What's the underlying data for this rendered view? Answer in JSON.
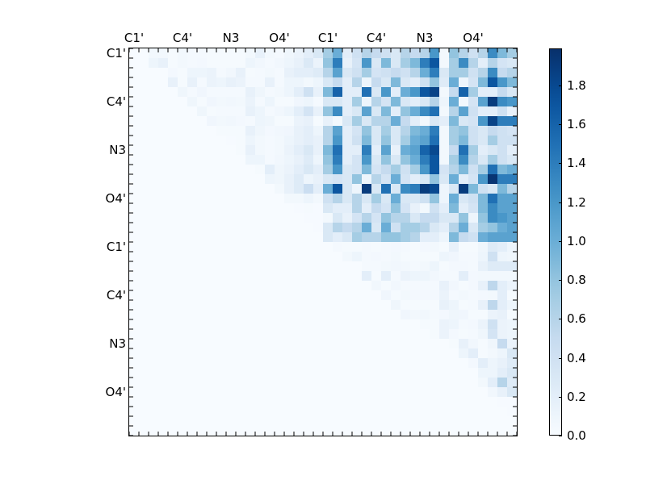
{
  "chart_data": {
    "type": "heatmap",
    "title": "",
    "xlabel": "",
    "ylabel": "",
    "rows": 40,
    "cols": 40,
    "x_tick_labels": [
      {
        "index": 0,
        "label": "C1'"
      },
      {
        "index": 5,
        "label": "C4'"
      },
      {
        "index": 10,
        "label": "N3"
      },
      {
        "index": 15,
        "label": "O4'"
      },
      {
        "index": 20,
        "label": "C1'"
      },
      {
        "index": 25,
        "label": "C4'"
      },
      {
        "index": 30,
        "label": "N3"
      },
      {
        "index": 35,
        "label": "O4'"
      }
    ],
    "y_tick_labels": [
      {
        "index": 0,
        "label": "C1'"
      },
      {
        "index": 5,
        "label": "C4'"
      },
      {
        "index": 10,
        "label": "N3"
      },
      {
        "index": 15,
        "label": "O4'"
      },
      {
        "index": 20,
        "label": "C1'"
      },
      {
        "index": 25,
        "label": "C4'"
      },
      {
        "index": 30,
        "label": "N3"
      },
      {
        "index": 35,
        "label": "O4'"
      }
    ],
    "colormap": "Blues",
    "vmin": 0.0,
    "vmax": 1.99,
    "colorbar": {
      "ticks": [
        "0.0",
        "0.2",
        "0.4",
        "0.6",
        "0.8",
        "1.0",
        "1.2",
        "1.4",
        "1.6",
        "1.8"
      ]
    },
    "upper_left_block_note": "rows 0-19, cols 0-19: faint values 0-0.4, upper triangular",
    "upper_left": [
      [
        0,
        0,
        0.05,
        0.05,
        0.02,
        0.05,
        0.03,
        0.03,
        0.02,
        0.02,
        0.02,
        0.02,
        0.05,
        0.15,
        0.05,
        0.03,
        0.08,
        0.12,
        0.2,
        0.3
      ],
      [
        0,
        0,
        0.1,
        0.15,
        0.02,
        0.05,
        0.03,
        0.04,
        0.02,
        0.02,
        0.02,
        0.02,
        0.1,
        0.06,
        0.03,
        0.06,
        0.1,
        0.15,
        0.28,
        0.12
      ],
      [
        0,
        0,
        0,
        0,
        0.04,
        0.02,
        0.1,
        0.1,
        0.12,
        0.03,
        0.06,
        0.15,
        0.02,
        0.03,
        0.05,
        0.03,
        0.15,
        0.2,
        0.2,
        0.25
      ],
      [
        0,
        0,
        0,
        0,
        0.15,
        0.02,
        0.15,
        0.03,
        0.12,
        0.1,
        0.15,
        0.12,
        0.03,
        0.03,
        0.15,
        0.03,
        0.1,
        0.1,
        0.05,
        0.1
      ],
      [
        0,
        0,
        0,
        0,
        0,
        0.08,
        0.03,
        0.07,
        0.03,
        0.03,
        0.03,
        0.03,
        0.15,
        0.08,
        0.03,
        0.05,
        0.1,
        0.2,
        0.4,
        0.15
      ],
      [
        0,
        0,
        0,
        0,
        0,
        0,
        0.08,
        0.02,
        0.07,
        0.05,
        0.06,
        0.05,
        0.12,
        0.03,
        0.1,
        0.02,
        0.02,
        0.07,
        0.1,
        0.03
      ],
      [
        0,
        0,
        0,
        0,
        0,
        0,
        0,
        0.08,
        0.02,
        0.03,
        0.03,
        0.03,
        0.15,
        0.1,
        0.03,
        0.06,
        0.1,
        0.2,
        0.35,
        0.15
      ],
      [
        0,
        0,
        0,
        0,
        0,
        0,
        0,
        0,
        0.07,
        0.05,
        0.06,
        0.04,
        0.03,
        0.1,
        0.08,
        0.02,
        0.02,
        0.12,
        0.15,
        0.02
      ],
      [
        0,
        0,
        0,
        0,
        0,
        0,
        0,
        0,
        0,
        0.02,
        0.02,
        0.02,
        0.15,
        0.08,
        0.04,
        0.06,
        0.07,
        0.15,
        0.2,
        0.1
      ],
      [
        0,
        0,
        0,
        0,
        0,
        0,
        0,
        0,
        0,
        0,
        0.01,
        0.02,
        0.1,
        0.05,
        0.03,
        0.05,
        0.1,
        0.15,
        0.2,
        0.15
      ],
      [
        0,
        0,
        0,
        0,
        0,
        0,
        0,
        0,
        0,
        0,
        0,
        0.02,
        0.15,
        0.05,
        0.03,
        0.05,
        0.12,
        0.2,
        0.3,
        0.15
      ],
      [
        0,
        0,
        0,
        0,
        0,
        0,
        0,
        0,
        0,
        0,
        0,
        0,
        0.1,
        0.1,
        0.03,
        0.06,
        0.1,
        0.15,
        0.25,
        0.1
      ],
      [
        0,
        0,
        0,
        0,
        0,
        0,
        0,
        0,
        0,
        0,
        0,
        0,
        0,
        0.02,
        0.2,
        0.08,
        0.12,
        0.2,
        0.3,
        0.2
      ],
      [
        0,
        0,
        0,
        0,
        0,
        0,
        0,
        0,
        0,
        0,
        0,
        0,
        0,
        0,
        0.1,
        0.08,
        0.15,
        0.25,
        0.1,
        0.15
      ],
      [
        0,
        0,
        0,
        0,
        0,
        0,
        0,
        0,
        0,
        0,
        0,
        0,
        0,
        0,
        0,
        0.05,
        0.15,
        0.25,
        0.45,
        0.2
      ],
      [
        0,
        0,
        0,
        0,
        0,
        0,
        0,
        0,
        0,
        0,
        0,
        0,
        0,
        0,
        0,
        0,
        0.05,
        0.05,
        0.1,
        0.05
      ],
      [
        0,
        0,
        0,
        0,
        0,
        0,
        0,
        0,
        0,
        0,
        0,
        0,
        0,
        0,
        0,
        0,
        0,
        0.01,
        0.02,
        0.01
      ],
      [
        0,
        0,
        0,
        0,
        0,
        0,
        0,
        0,
        0,
        0,
        0,
        0,
        0,
        0,
        0,
        0,
        0,
        0,
        0.01,
        0.01
      ],
      [
        0,
        0,
        0,
        0,
        0,
        0,
        0,
        0,
        0,
        0,
        0,
        0,
        0,
        0,
        0,
        0,
        0,
        0,
        0,
        0.01
      ],
      [
        0,
        0,
        0,
        0,
        0,
        0,
        0,
        0,
        0,
        0,
        0,
        0,
        0,
        0,
        0,
        0,
        0,
        0,
        0,
        0
      ]
    ],
    "upper_right": [
      [
        0.7,
        1.0,
        0.2,
        0.4,
        0.6,
        0.5,
        0.4,
        0.3,
        0.6,
        0.5,
        0.6,
        1.2,
        0.05,
        0.8,
        0.6,
        0.4,
        0.6,
        1.3,
        0.9,
        0.7
      ],
      [
        0.8,
        1.4,
        0.15,
        0.35,
        1.2,
        0.3,
        0.9,
        0.3,
        0.7,
        0.9,
        1.4,
        1.7,
        0.05,
        0.7,
        1.3,
        0.6,
        0.2,
        0.6,
        0.35,
        0.3
      ],
      [
        0.6,
        1.1,
        0.3,
        0.4,
        0.7,
        0.35,
        0.4,
        0.5,
        0.4,
        0.6,
        1.0,
        1.4,
        0.3,
        0.7,
        0.7,
        0.4,
        0.6,
        1.3,
        0.5,
        0.6
      ],
      [
        0.3,
        0.5,
        0.2,
        0.6,
        0.1,
        0.5,
        0.3,
        0.9,
        0.3,
        0.2,
        0.4,
        0.8,
        0.25,
        1.0,
        0.1,
        0.35,
        0.9,
        1.7,
        1.2,
        0.9
      ],
      [
        0.9,
        1.6,
        0.2,
        0.2,
        1.5,
        0.3,
        1.2,
        0.2,
        1.0,
        1.2,
        1.7,
        1.85,
        0.05,
        0.5,
        1.6,
        0.7,
        0.2,
        0.2,
        0.5,
        0.3
      ],
      [
        0.3,
        0.3,
        0.2,
        0.7,
        0.1,
        0.6,
        0.35,
        0.9,
        0.3,
        0.2,
        0.3,
        0.6,
        0.1,
        1.0,
        0.05,
        0.35,
        1.1,
        1.9,
        1.3,
        1.2
      ],
      [
        0.8,
        1.3,
        0.2,
        0.3,
        1.1,
        0.3,
        0.9,
        0.2,
        0.8,
        1.0,
        1.3,
        1.5,
        0.05,
        0.6,
        1.1,
        0.4,
        0.2,
        0.2,
        0.4,
        0.15
      ],
      [
        0.15,
        0.05,
        0.3,
        0.7,
        0.3,
        0.6,
        0.6,
        1.0,
        0.5,
        0.2,
        0.05,
        0.3,
        0.2,
        0.9,
        0.3,
        0.35,
        1.2,
        1.85,
        1.4,
        1.4
      ],
      [
        0.6,
        1.1,
        0.2,
        0.35,
        0.8,
        0.3,
        0.7,
        0.3,
        0.6,
        0.9,
        1.0,
        1.4,
        0.05,
        0.7,
        0.8,
        0.4,
        0.3,
        0.5,
        0.4,
        0.35
      ],
      [
        0.6,
        1.2,
        0.2,
        0.4,
        0.9,
        0.3,
        0.8,
        0.3,
        0.7,
        1.0,
        1.1,
        1.5,
        0.05,
        0.7,
        0.9,
        0.4,
        0.3,
        0.7,
        0.4,
        0.4
      ],
      [
        0.9,
        1.5,
        0.2,
        0.2,
        1.4,
        0.2,
        1.1,
        0.15,
        1.0,
        1.1,
        1.6,
        1.8,
        0.05,
        0.5,
        1.5,
        0.7,
        0.2,
        0.3,
        0.4,
        0.2
      ],
      [
        0.8,
        1.4,
        0.2,
        0.35,
        1.2,
        0.3,
        0.8,
        0.3,
        0.8,
        1.0,
        1.4,
        1.7,
        0.05,
        0.7,
        1.3,
        0.6,
        0.3,
        0.7,
        0.4,
        0.3
      ],
      [
        0.7,
        1.2,
        0.3,
        0.35,
        0.9,
        0.35,
        0.5,
        0.7,
        0.4,
        0.7,
        1.2,
        1.7,
        0.35,
        0.6,
        0.9,
        0.4,
        0.7,
        1.5,
        0.9,
        1.0
      ],
      [
        0.3,
        0.35,
        0.3,
        0.8,
        0.1,
        0.6,
        0.35,
        1.0,
        0.35,
        0.2,
        0.3,
        0.8,
        0.3,
        1.0,
        0.2,
        0.35,
        1.2,
        1.95,
        1.4,
        1.4
      ],
      [
        1.0,
        1.7,
        0.3,
        0.1,
        1.9,
        0.3,
        1.5,
        0.3,
        1.3,
        1.4,
        1.9,
        1.8,
        0.1,
        0.3,
        1.9,
        0.9,
        0.4,
        0.3,
        0.9,
        0.6
      ],
      [
        0.4,
        0.6,
        0.3,
        0.6,
        0.3,
        0.7,
        0.3,
        1.0,
        0.3,
        0.3,
        0.4,
        0.8,
        0.1,
        1.0,
        0.3,
        0.4,
        0.9,
        1.5,
        1.1,
        1.1
      ],
      [
        0.3,
        0.2,
        0.2,
        0.6,
        0.2,
        0.5,
        0.35,
        0.8,
        0.35,
        0.15,
        0.05,
        0.4,
        0.2,
        0.9,
        0.2,
        0.35,
        0.9,
        1.3,
        1.1,
        1.1
      ],
      [
        0.05,
        0.3,
        0.15,
        0.35,
        0.6,
        0.35,
        0.8,
        0.6,
        0.6,
        0.3,
        0.5,
        0.5,
        0.3,
        0.3,
        0.8,
        0.1,
        0.8,
        1.3,
        1.2,
        1.1
      ],
      [
        0.3,
        0.6,
        0.5,
        0.6,
        1.0,
        0.3,
        1.0,
        0.4,
        0.7,
        0.7,
        0.6,
        0.3,
        0.2,
        0.6,
        1.0,
        0.3,
        0.7,
        0.8,
        1.0,
        1.1
      ],
      [
        0.3,
        0.2,
        0.3,
        0.7,
        0.6,
        0.6,
        0.8,
        0.8,
        0.7,
        0.6,
        0.2,
        0.2,
        0.1,
        0.9,
        0.5,
        0.4,
        1.0,
        1.1,
        1.1,
        1.1
      ]
    ],
    "lower_right": [
      [
        0,
        0.03,
        0.02,
        0.02,
        0.03,
        0.02,
        0.03,
        0.04,
        0.03,
        0.02,
        0.04,
        0.05,
        0.02,
        0.15,
        0.02,
        0.02,
        0.08,
        0.25,
        0.2,
        0.1
      ],
      [
        0,
        0,
        0.05,
        0.1,
        0.03,
        0.04,
        0.03,
        0.05,
        0.02,
        0.02,
        0.02,
        0.02,
        0.1,
        0.07,
        0.03,
        0.03,
        0.1,
        0.4,
        0.1,
        0.08
      ],
      [
        0,
        0,
        0,
        0,
        0.03,
        0.03,
        0.05,
        0.06,
        0.05,
        0.03,
        0.05,
        0.1,
        0.02,
        0.04,
        0.04,
        0.03,
        0.15,
        0.25,
        0.25,
        0.25
      ],
      [
        0,
        0,
        0,
        0,
        0.2,
        0.02,
        0.2,
        0.03,
        0.12,
        0.1,
        0.1,
        0.06,
        0.03,
        0.03,
        0.2,
        0.04,
        0.05,
        0.05,
        0.05,
        0.05
      ],
      [
        0,
        0,
        0,
        0,
        0,
        0.06,
        0.02,
        0.06,
        0.03,
        0.03,
        0.03,
        0.03,
        0.15,
        0.06,
        0.02,
        0.04,
        0.15,
        0.55,
        0.2,
        0.12
      ],
      [
        0,
        0,
        0,
        0,
        0,
        0,
        0.07,
        0.02,
        0.05,
        0.04,
        0.04,
        0.04,
        0.12,
        0.03,
        0.05,
        0.03,
        0.04,
        0.05,
        0.2,
        0.02
      ],
      [
        0,
        0,
        0,
        0,
        0,
        0,
        0,
        0.08,
        0.02,
        0.02,
        0.02,
        0.02,
        0.15,
        0.1,
        0.02,
        0.03,
        0.15,
        0.55,
        0.2,
        0.1
      ],
      [
        0,
        0,
        0,
        0,
        0,
        0,
        0,
        0,
        0.07,
        0.05,
        0.06,
        0.03,
        0.04,
        0.08,
        0.07,
        0.02,
        0.02,
        0.12,
        0.15,
        0.02
      ],
      [
        0,
        0,
        0,
        0,
        0,
        0,
        0,
        0,
        0,
        0,
        0.02,
        0.02,
        0.12,
        0.1,
        0.03,
        0.04,
        0.12,
        0.4,
        0.12,
        0.1
      ],
      [
        0,
        0,
        0,
        0,
        0,
        0,
        0,
        0,
        0,
        0,
        0,
        0.02,
        0.12,
        0.04,
        0.02,
        0.03,
        0.08,
        0.35,
        0.12,
        0.1
      ],
      [
        0,
        0,
        0,
        0,
        0,
        0,
        0,
        0,
        0,
        0,
        0,
        0,
        0,
        0.02,
        0.15,
        0.06,
        0.02,
        0.08,
        0.5,
        0.12
      ],
      [
        0,
        0,
        0,
        0,
        0,
        0,
        0,
        0,
        0,
        0,
        0,
        0,
        0,
        0,
        0.1,
        0.2,
        0.02,
        0.05,
        0.1,
        0.3
      ],
      [
        0,
        0,
        0,
        0,
        0,
        0,
        0,
        0,
        0,
        0,
        0,
        0,
        0,
        0,
        0,
        0.04,
        0.2,
        0.1,
        0.15,
        0.25
      ],
      [
        0,
        0,
        0,
        0,
        0,
        0,
        0,
        0,
        0,
        0,
        0,
        0,
        0,
        0,
        0,
        0,
        0.1,
        0.1,
        0.2,
        0.3
      ],
      [
        0,
        0,
        0,
        0,
        0,
        0,
        0,
        0,
        0,
        0,
        0,
        0,
        0,
        0,
        0,
        0,
        0.05,
        0.2,
        0.6,
        0.25
      ],
      [
        0,
        0,
        0,
        0,
        0,
        0,
        0,
        0,
        0,
        0,
        0,
        0,
        0,
        0,
        0,
        0,
        0,
        0.06,
        0.15,
        0.3
      ],
      [
        0,
        0,
        0,
        0,
        0,
        0,
        0,
        0,
        0,
        0,
        0,
        0,
        0,
        0,
        0,
        0,
        0,
        0,
        0.01,
        0.01
      ],
      [
        0,
        0,
        0,
        0,
        0,
        0,
        0,
        0,
        0,
        0,
        0,
        0,
        0,
        0,
        0,
        0,
        0,
        0,
        0,
        0.01
      ],
      [
        0,
        0,
        0,
        0,
        0,
        0,
        0,
        0,
        0,
        0,
        0,
        0,
        0,
        0,
        0,
        0,
        0,
        0,
        0,
        0
      ],
      [
        0,
        0,
        0,
        0,
        0,
        0,
        0,
        0,
        0,
        0,
        0,
        0,
        0,
        0,
        0,
        0,
        0,
        0,
        0,
        0
      ]
    ]
  }
}
